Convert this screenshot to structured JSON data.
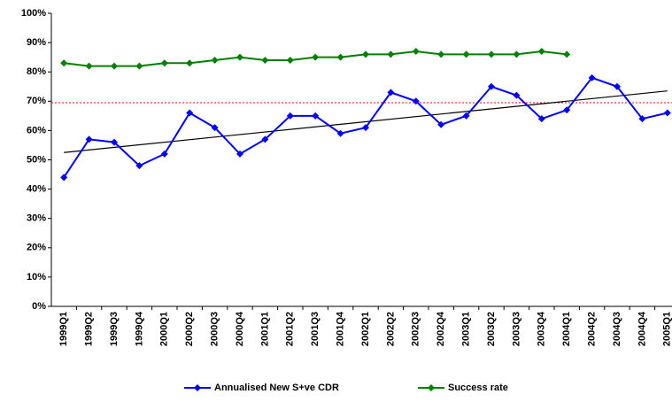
{
  "chart_data": {
    "type": "line",
    "categories": [
      "1999Q1",
      "1999Q2",
      "1999Q3",
      "1999Q4",
      "2000Q1",
      "2000Q2",
      "2000Q3",
      "2000Q4",
      "2001Q1",
      "2001Q2",
      "2001Q3",
      "2001Q4",
      "2002Q1",
      "2002Q2",
      "2002Q3",
      "2002Q4",
      "2003Q1",
      "2003Q2",
      "2003Q3",
      "2003Q4",
      "2004Q1",
      "2004Q2",
      "2004Q3",
      "2004Q4",
      "2005Q1"
    ],
    "series": [
      {
        "name": "Annualised New S+ve CDR",
        "color": "#0000ff",
        "values": [
          44,
          57,
          56,
          48,
          52,
          66,
          61,
          52,
          57,
          65,
          65,
          59,
          61,
          73,
          70,
          62,
          65,
          75,
          72,
          64,
          67,
          78,
          75,
          64,
          66
        ]
      },
      {
        "name": "Success rate",
        "color": "#008000",
        "values": [
          83,
          82,
          82,
          82,
          83,
          83,
          84,
          85,
          84,
          84,
          85,
          85,
          86,
          86,
          87,
          86,
          86,
          86,
          86,
          87,
          86,
          null,
          null,
          null,
          null
        ]
      }
    ],
    "trend": {
      "color": "#000000",
      "values": [
        52.5,
        73.5
      ]
    },
    "reference_line": {
      "value": 69.5,
      "color": "#ff0000"
    },
    "ylim": [
      0,
      100
    ],
    "yticks": [
      {
        "value": 0,
        "label": "0%"
      },
      {
        "value": 10,
        "label": "10%"
      },
      {
        "value": 20,
        "label": "20%"
      },
      {
        "value": 30,
        "label": "30%"
      },
      {
        "value": 40,
        "label": "40%"
      },
      {
        "value": 50,
        "label": "50%"
      },
      {
        "value": 60,
        "label": "60%"
      },
      {
        "value": 70,
        "label": "70%"
      },
      {
        "value": 80,
        "label": "80%"
      },
      {
        "value": 90,
        "label": "90%"
      },
      {
        "value": 100,
        "label": "100%"
      }
    ],
    "grid": false,
    "legend": "bottom"
  }
}
